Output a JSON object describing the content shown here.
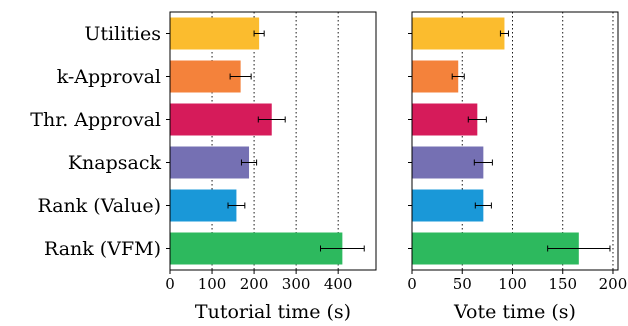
{
  "chart_data": [
    {
      "type": "bar",
      "orientation": "horizontal",
      "categories": [
        "Utilities",
        "k-Approval",
        "Thr. Approval",
        "Knapsack",
        "Rank (Value)",
        "Rank (VFM)"
      ],
      "values": [
        212,
        168,
        242,
        188,
        158,
        410
      ],
      "errors": [
        12,
        25,
        32,
        18,
        20,
        52
      ],
      "colors": [
        "#fbbc2e",
        "#f4823b",
        "#d61b5a",
        "#7570b3",
        "#1a98d8",
        "#2db95e"
      ],
      "xlabel": "Tutorial time (s)",
      "xlim": [
        0,
        490
      ],
      "xticks": [
        0,
        100,
        200,
        300,
        400
      ],
      "grid_x": [
        100,
        200,
        300,
        400
      ]
    },
    {
      "type": "bar",
      "orientation": "horizontal",
      "categories": [
        "Utilities",
        "k-Approval",
        "Thr. Approval",
        "Knapsack",
        "Rank (Value)",
        "Rank (VFM)"
      ],
      "values": [
        92,
        46,
        65,
        71,
        71,
        166
      ],
      "errors": [
        4,
        6,
        9,
        9,
        8,
        31
      ],
      "colors": [
        "#fbbc2e",
        "#f4823b",
        "#d61b5a",
        "#7570b3",
        "#1a98d8",
        "#2db95e"
      ],
      "xlabel": "Vote time (s)",
      "xlim": [
        0,
        205
      ],
      "xticks": [
        0,
        50,
        100,
        150,
        200
      ],
      "grid_x": [
        50,
        100,
        150,
        200
      ]
    }
  ]
}
